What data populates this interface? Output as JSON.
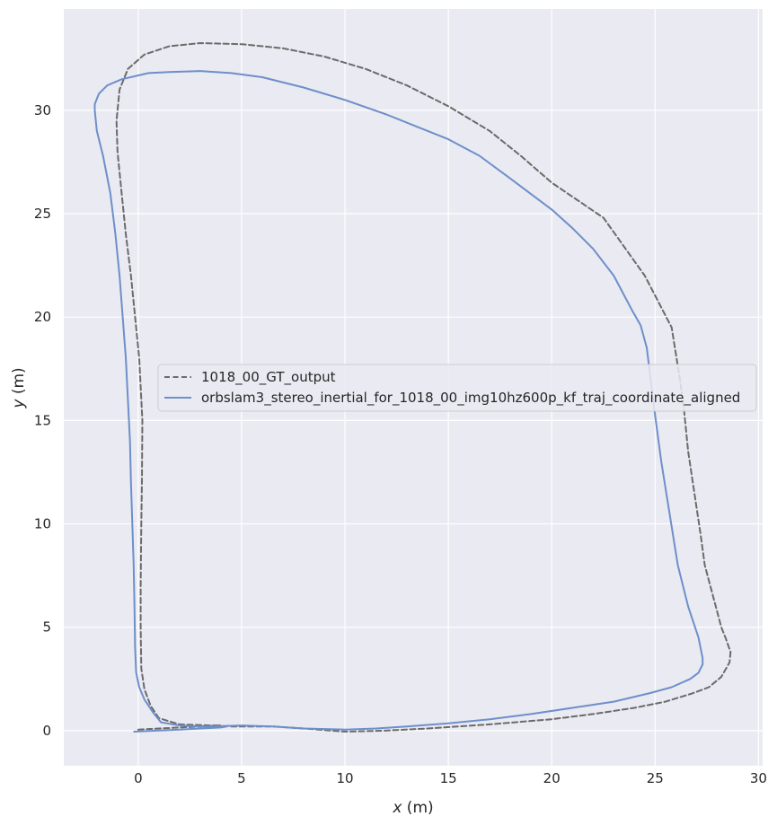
{
  "chart_data": {
    "type": "line",
    "title": "",
    "xlabel_var": "x",
    "xlabel_unit": " (m)",
    "ylabel_var": "y",
    "ylabel_unit": " (m)",
    "xlim": [
      -3.6,
      30.2
    ],
    "ylim": [
      -1.7,
      34.9
    ],
    "xticks": [
      0,
      5,
      10,
      15,
      20,
      25,
      30
    ],
    "yticks": [
      0,
      5,
      10,
      15,
      20,
      25,
      30
    ],
    "grid": true,
    "legend_position": "center",
    "series": [
      {
        "name": "1018_00_GT_output",
        "color": "#6b6b6b",
        "dash": true,
        "x": [
          0.0,
          1.0,
          2.0,
          3.0,
          4.0,
          3.5,
          2.0,
          1.0,
          0.6,
          0.3,
          0.15,
          0.12,
          0.12,
          0.15,
          0.18,
          0.2,
          0.05,
          -0.15,
          -0.35,
          -0.6,
          -0.8,
          -1.0,
          -1.05,
          -0.9,
          -0.5,
          0.3,
          1.5,
          3.0,
          5.0,
          7.0,
          9.0,
          11.0,
          13.0,
          15.0,
          17.0,
          18.5,
          20.0,
          22.5,
          24.5,
          25.8,
          26.2,
          26.4,
          26.6,
          26.9,
          27.2,
          27.4,
          27.8,
          28.2,
          28.4,
          28.65,
          28.6,
          28.2,
          27.6,
          26.8,
          25.5,
          24.0,
          22.0,
          20.0,
          17.0,
          14.0,
          12.0,
          10.0,
          8.0,
          6.5,
          5.5,
          4.5
        ],
        "y": [
          0.05,
          0.1,
          0.15,
          0.2,
          0.25,
          0.25,
          0.3,
          0.6,
          1.2,
          2.0,
          3.0,
          5.0,
          7.0,
          10.0,
          12.0,
          15.0,
          18.0,
          20.0,
          22.0,
          24.0,
          26.0,
          28.0,
          29.5,
          31.0,
          32.0,
          32.7,
          33.1,
          33.25,
          33.2,
          33.0,
          32.6,
          32.0,
          31.2,
          30.2,
          29.0,
          27.8,
          26.5,
          24.8,
          22.0,
          19.5,
          17.0,
          15.5,
          13.5,
          11.5,
          9.5,
          8.0,
          6.5,
          5.0,
          4.5,
          3.8,
          3.3,
          2.6,
          2.1,
          1.8,
          1.4,
          1.1,
          0.8,
          0.55,
          0.3,
          0.1,
          0.0,
          -0.05,
          0.1,
          0.2,
          0.2,
          0.2
        ]
      },
      {
        "name": "orbslam3_stereo_inertial_for_1018_00_img10hz600p_kf_traj_coordinate_aligned",
        "color": "#6d8fca",
        "dash": false,
        "x": [
          -0.2,
          1.0,
          2.0,
          3.0,
          4.0,
          4.3,
          3.0,
          2.0,
          1.1,
          0.7,
          0.3,
          0.05,
          -0.1,
          -0.15,
          -0.18,
          -0.22,
          -0.35,
          -0.4,
          -0.5,
          -0.6,
          -0.75,
          -0.9,
          -1.1,
          -1.35,
          -1.7,
          -2.0,
          -2.1,
          -2.1,
          -1.9,
          -1.5,
          -0.8,
          0.5,
          1.5,
          3.0,
          4.5,
          6.0,
          8.0,
          10.0,
          12.0,
          13.5,
          15.0,
          16.5,
          18.0,
          20.0,
          21.0,
          22.0,
          23.0,
          23.9,
          24.3,
          24.6,
          24.9,
          25.3,
          25.7,
          26.1,
          26.6,
          27.1,
          27.3,
          27.3,
          27.1,
          26.7,
          25.8,
          24.7,
          23.0,
          21.0,
          19.0,
          17.0,
          15.0,
          13.0,
          11.5,
          10.0,
          8.0,
          6.5,
          5.0,
          3.5
        ],
        "y": [
          -0.05,
          0.0,
          0.05,
          0.1,
          0.15,
          0.2,
          0.2,
          0.25,
          0.4,
          0.9,
          1.5,
          2.1,
          2.8,
          4.0,
          6.0,
          8.0,
          12.0,
          14.0,
          16.0,
          18.0,
          20.0,
          22.0,
          24.0,
          26.0,
          27.8,
          29.0,
          30.0,
          30.3,
          30.8,
          31.2,
          31.5,
          31.8,
          31.85,
          31.9,
          31.8,
          31.6,
          31.1,
          30.5,
          29.8,
          29.2,
          28.6,
          27.8,
          26.7,
          25.2,
          24.3,
          23.3,
          22.0,
          20.3,
          19.6,
          18.5,
          16.0,
          13.0,
          10.5,
          8.0,
          6.0,
          4.5,
          3.5,
          3.2,
          2.8,
          2.5,
          2.1,
          1.8,
          1.4,
          1.1,
          0.8,
          0.55,
          0.35,
          0.2,
          0.1,
          0.05,
          0.1,
          0.2,
          0.25,
          0.2
        ]
      }
    ]
  }
}
